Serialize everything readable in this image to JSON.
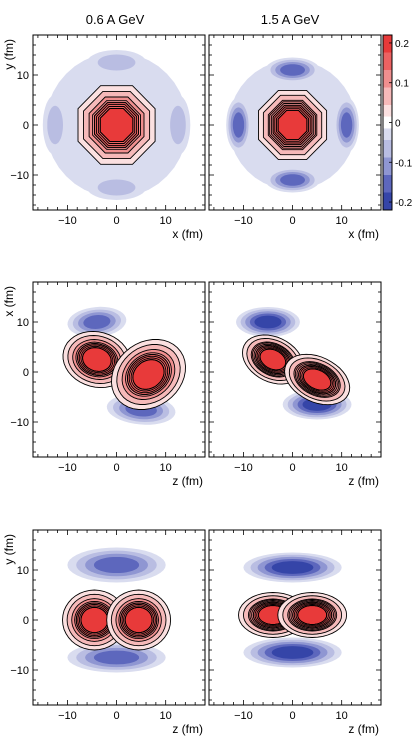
{
  "column_titles": [
    "0.6 A GeV",
    "1.5 A GeV"
  ],
  "colors": {
    "red_levels": [
      "#fbe0e0",
      "#f6b9b9",
      "#f08f8f",
      "#ec6262",
      "#e83a3a"
    ],
    "blue_levels": [
      "#d9dcef",
      "#b9bde2",
      "#8f96d2",
      "#5d67bd",
      "#3545a8"
    ],
    "contour_line": "#000000"
  },
  "colorbar": {
    "ticks": [
      {
        "value": 0.2,
        "label": "0.2"
      },
      {
        "value": 0.1,
        "label": "0.1"
      },
      {
        "value": 0.0,
        "label": "0"
      },
      {
        "value": -0.1,
        "label": "-0.1"
      },
      {
        "value": -0.2,
        "label": "-0.2"
      }
    ],
    "range": [
      -0.22,
      0.22
    ]
  },
  "chart_data": [
    {
      "type": "heatmap",
      "row": 1,
      "title": "0.6 A GeV",
      "xlabel": "x (fm)",
      "ylabel": "y (fm)",
      "xlim": [
        -17,
        18
      ],
      "ylim": [
        -17,
        18
      ],
      "xticks": [
        {
          "v": -10,
          "l": "−10"
        },
        {
          "v": 0,
          "l": "0"
        },
        {
          "v": 10,
          "l": "10"
        }
      ],
      "yticks": [
        {
          "v": 10,
          "l": "10"
        },
        {
          "v": 0,
          "l": "0"
        },
        {
          "v": -10,
          "l": "−10"
        }
      ],
      "lobes": [
        {
          "cx": 0,
          "cy": 0,
          "a": 8.5,
          "b": 8.5,
          "rot": 0,
          "sign": 1,
          "level": 5,
          "lines": 5,
          "shape": "oct"
        },
        {
          "cx": 0,
          "cy": 0,
          "a": 14.5,
          "b": 14.5,
          "rot": 0,
          "sign": -1,
          "level": 1,
          "shape": "ring"
        },
        {
          "cx": 0,
          "cy": 12.5,
          "a": 6,
          "b": 2.5,
          "rot": 0,
          "sign": -1,
          "level": 2
        },
        {
          "cx": 0,
          "cy": -12.5,
          "a": 6,
          "b": 2.5,
          "rot": 0,
          "sign": -1,
          "level": 2
        },
        {
          "cx": 12.5,
          "cy": 0,
          "a": 2.5,
          "b": 6,
          "rot": 0,
          "sign": -1,
          "level": 2
        },
        {
          "cx": -12.5,
          "cy": 0,
          "a": 2.5,
          "b": 6,
          "rot": 0,
          "sign": -1,
          "level": 2
        }
      ]
    },
    {
      "type": "heatmap",
      "row": 1,
      "title": "1.5 A GeV",
      "xlabel": "x (fm)",
      "ylabel": "",
      "xlim": [
        -17,
        18
      ],
      "ylim": [
        -17,
        18
      ],
      "xticks": [
        {
          "v": -10,
          "l": "−10"
        },
        {
          "v": 0,
          "l": "0"
        },
        {
          "v": 10,
          "l": "10"
        }
      ],
      "yticks": [],
      "lobes": [
        {
          "cx": 0,
          "cy": 0,
          "a": 7.5,
          "b": 7.5,
          "rot": 0,
          "sign": 1,
          "level": 5,
          "lines": 6,
          "shape": "oct"
        },
        {
          "cx": 0,
          "cy": 0,
          "a": 13,
          "b": 13,
          "rot": 0,
          "sign": -1,
          "level": 1,
          "shape": "ring"
        },
        {
          "cx": 0,
          "cy": 11,
          "a": 5.5,
          "b": 2.5,
          "rot": 0,
          "sign": -1,
          "level": 4
        },
        {
          "cx": 0,
          "cy": -11,
          "a": 5.5,
          "b": 2.5,
          "rot": 0,
          "sign": -1,
          "level": 4
        },
        {
          "cx": 11,
          "cy": 0,
          "a": 2.5,
          "b": 5.5,
          "rot": 0,
          "sign": -1,
          "level": 4
        },
        {
          "cx": -11,
          "cy": 0,
          "a": 2.5,
          "b": 5.5,
          "rot": 0,
          "sign": -1,
          "level": 4
        }
      ]
    },
    {
      "type": "heatmap",
      "row": 2,
      "title": "0.6 A GeV",
      "xlabel": "z (fm)",
      "ylabel": "x (fm)",
      "xlim": [
        -17,
        18
      ],
      "ylim": [
        -17,
        18
      ],
      "xticks": [
        {
          "v": -10,
          "l": "−10"
        },
        {
          "v": 0,
          "l": "0"
        },
        {
          "v": 10,
          "l": "10"
        }
      ],
      "yticks": [
        {
          "v": 10,
          "l": "10"
        },
        {
          "v": 0,
          "l": "0"
        },
        {
          "v": -10,
          "l": "−10"
        }
      ],
      "lobes": [
        {
          "cx": -4,
          "cy": 2.5,
          "a": 7,
          "b": 5.5,
          "rot": -15,
          "sign": 1,
          "level": 5,
          "lines": 5
        },
        {
          "cx": 6.5,
          "cy": -0.5,
          "a": 8,
          "b": 6.5,
          "rot": 35,
          "sign": 1,
          "level": 5,
          "lines": 5
        },
        {
          "cx": -4,
          "cy": 10,
          "a": 6,
          "b": 3,
          "rot": 5,
          "sign": -1,
          "level": 4
        },
        {
          "cx": 5,
          "cy": -7.5,
          "a": 7,
          "b": 3,
          "rot": -5,
          "sign": -1,
          "level": 4
        }
      ]
    },
    {
      "type": "heatmap",
      "row": 2,
      "title": "1.5 A GeV",
      "xlabel": "z (fm)",
      "ylabel": "",
      "xlim": [
        -17,
        18
      ],
      "ylim": [
        -17,
        18
      ],
      "xticks": [
        {
          "v": -10,
          "l": "−10"
        },
        {
          "v": 0,
          "l": "0"
        },
        {
          "v": 10,
          "l": "10"
        }
      ],
      "yticks": [],
      "lobes": [
        {
          "cx": -4,
          "cy": 2.5,
          "a": 6.5,
          "b": 4.5,
          "rot": -25,
          "sign": 1,
          "level": 5,
          "lines": 6
        },
        {
          "cx": 5,
          "cy": -1.5,
          "a": 7,
          "b": 4.5,
          "rot": -25,
          "sign": 1,
          "level": 5,
          "lines": 6
        },
        {
          "cx": -5,
          "cy": 10,
          "a": 6.5,
          "b": 3,
          "rot": 0,
          "sign": -1,
          "level": 5
        },
        {
          "cx": 5,
          "cy": -6.5,
          "a": 7,
          "b": 3,
          "rot": 0,
          "sign": -1,
          "level": 5
        }
      ]
    },
    {
      "type": "heatmap",
      "row": 3,
      "title": "0.6 A GeV",
      "xlabel": "z (fm)",
      "ylabel": "y (fm)",
      "xlim": [
        -17,
        18
      ],
      "ylim": [
        -17,
        18
      ],
      "xticks": [
        {
          "v": -10,
          "l": "−10"
        },
        {
          "v": 0,
          "l": "0"
        },
        {
          "v": 10,
          "l": "10"
        }
      ],
      "yticks": [
        {
          "v": 10,
          "l": "10"
        },
        {
          "v": 0,
          "l": "0"
        },
        {
          "v": -10,
          "l": "−10"
        }
      ],
      "lobes": [
        {
          "cx": -4.5,
          "cy": 0,
          "a": 6.5,
          "b": 6,
          "rot": 0,
          "sign": 1,
          "level": 5,
          "lines": 5
        },
        {
          "cx": 4.5,
          "cy": 0,
          "a": 6.5,
          "b": 6,
          "rot": 0,
          "sign": 1,
          "level": 5,
          "lines": 5
        },
        {
          "cx": 0,
          "cy": 11,
          "a": 10,
          "b": 3.5,
          "rot": 0,
          "sign": -1,
          "level": 4
        },
        {
          "cx": 0,
          "cy": -7.5,
          "a": 10,
          "b": 3,
          "rot": 0,
          "sign": -1,
          "level": 4
        }
      ]
    },
    {
      "type": "heatmap",
      "row": 3,
      "title": "1.5 A GeV",
      "xlabel": "z (fm)",
      "ylabel": "",
      "xlim": [
        -17,
        18
      ],
      "ylim": [
        -17,
        18
      ],
      "xticks": [
        {
          "v": -10,
          "l": "−10"
        },
        {
          "v": 0,
          "l": "0"
        },
        {
          "v": 10,
          "l": "10"
        }
      ],
      "yticks": [],
      "lobes": [
        {
          "cx": -4,
          "cy": 1,
          "a": 7,
          "b": 4.5,
          "rot": 0,
          "sign": 1,
          "level": 5,
          "lines": 6
        },
        {
          "cx": 4,
          "cy": 1,
          "a": 7,
          "b": 4.5,
          "rot": 0,
          "sign": 1,
          "level": 5,
          "lines": 6
        },
        {
          "cx": 0,
          "cy": 10.5,
          "a": 10,
          "b": 3,
          "rot": 0,
          "sign": -1,
          "level": 5
        },
        {
          "cx": 0,
          "cy": -6.5,
          "a": 10,
          "b": 3,
          "rot": 0,
          "sign": -1,
          "level": 5
        }
      ]
    }
  ]
}
